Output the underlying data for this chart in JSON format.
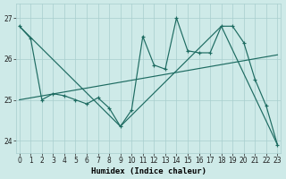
{
  "xlabel": "Humidex (Indice chaleur)",
  "xlim": [
    -0.3,
    23.3
  ],
  "ylim": [
    23.7,
    27.35
  ],
  "yticks": [
    24,
    25,
    26,
    27
  ],
  "xticks": [
    0,
    1,
    2,
    3,
    4,
    5,
    6,
    7,
    8,
    9,
    10,
    11,
    12,
    13,
    14,
    15,
    16,
    17,
    18,
    19,
    20,
    21,
    22,
    23
  ],
  "bg_color": "#ceeae8",
  "grid_color": "#a8cece",
  "line_color": "#1d6b61",
  "line1_x": [
    0,
    1,
    2,
    3,
    4,
    5,
    6,
    7,
    8,
    9,
    10,
    11,
    12,
    13,
    14,
    15,
    16,
    17,
    18,
    19,
    20,
    21,
    22,
    23
  ],
  "line1_y": [
    26.8,
    26.5,
    25.0,
    25.15,
    25.1,
    25.0,
    24.9,
    25.05,
    24.8,
    24.35,
    24.75,
    26.55,
    25.85,
    25.75,
    27.0,
    26.2,
    26.15,
    26.15,
    26.8,
    26.8,
    26.4,
    25.5,
    24.85,
    23.9
  ],
  "line2_x": [
    0,
    9,
    18,
    23
  ],
  "line2_y": [
    26.8,
    24.35,
    26.8,
    23.9
  ],
  "line3_x": [
    0,
    23
  ],
  "line3_y": [
    25.0,
    26.1
  ]
}
